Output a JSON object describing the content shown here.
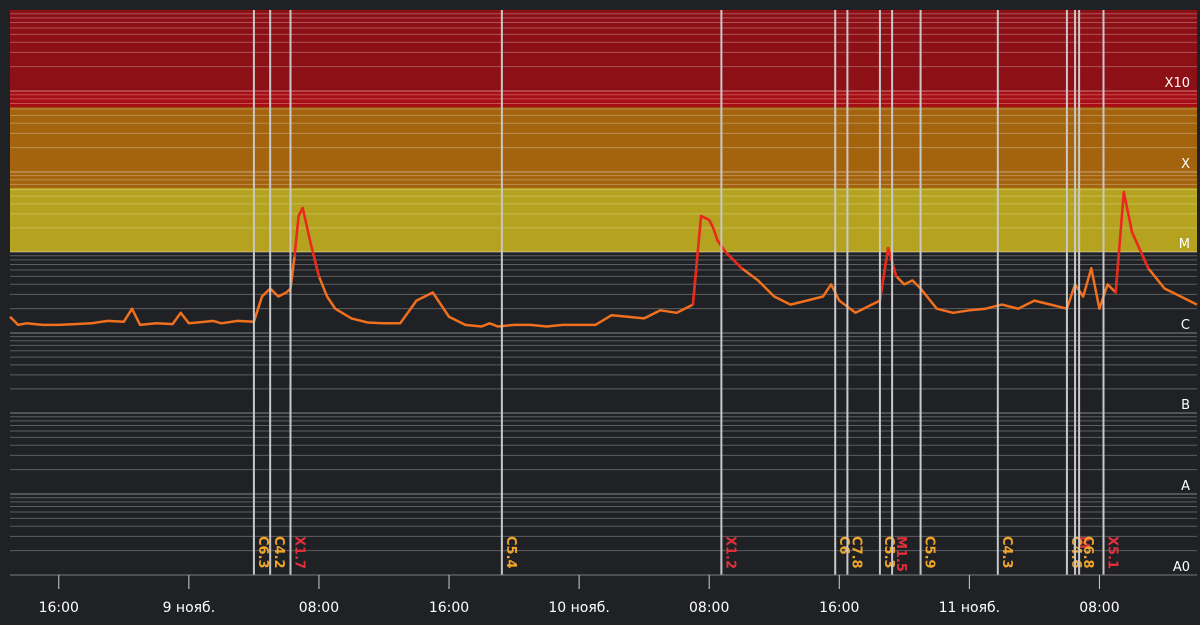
{
  "chart_data": {
    "type": "line",
    "title": "",
    "xlabel": "",
    "ylabel": "",
    "y_scale": "log",
    "x_range": [
      "08.11 13:00",
      "11.11 14:00"
    ],
    "x_ticks": [
      {
        "t": "08.11 16:00",
        "label": "16:00"
      },
      {
        "t": "09.11 00:00",
        "label": "9 нояб."
      },
      {
        "t": "09.11 08:00",
        "label": "08:00"
      },
      {
        "t": "09.11 16:00",
        "label": "16:00"
      },
      {
        "t": "10.11 00:00",
        "label": "10 нояб."
      },
      {
        "t": "10.11 08:00",
        "label": "08:00"
      },
      {
        "t": "10.11 16:00",
        "label": "16:00"
      },
      {
        "t": "11.11 00:00",
        "label": "11 нояб."
      },
      {
        "t": "11.11 08:00",
        "label": "08:00"
      }
    ],
    "y_class_labels": [
      {
        "label": "X10",
        "level": 1.0
      },
      {
        "label": "X",
        "level": 2.0
      },
      {
        "label": "M",
        "level": 3.0
      },
      {
        "label": "C",
        "level": 4.0
      },
      {
        "label": "B",
        "level": 5.0
      },
      {
        "label": "A",
        "level": 6.0
      },
      {
        "label": "A0",
        "level": 7.0
      }
    ],
    "zones": [
      {
        "name": "X10+",
        "from": 0.0,
        "to": 1.0,
        "color": "#8c1016"
      },
      {
        "name": "X10",
        "from": 1.0,
        "to": 1.2,
        "color": "#a80f14"
      },
      {
        "name": "X",
        "from": 1.2,
        "to": 2.2,
        "color": "#a4630d"
      },
      {
        "name": "M",
        "from": 2.2,
        "to": 3.0,
        "color": "#b5a21e"
      }
    ],
    "series": [
      {
        "color": "#f0701e",
        "peak_color": "#e8281e",
        "x": [
          "08.11 13:00",
          "08.11 13:30",
          "08.11 14:00",
          "08.11 15:00",
          "08.11 16:00",
          "08.11 17:00",
          "08.11 18:00",
          "08.11 19:00",
          "08.11 20:00",
          "08.11 20:30",
          "08.11 21:00",
          "08.11 22:00",
          "08.11 23:00",
          "08.11 23:30",
          "09.11 00:00",
          "09.11 01:00",
          "09.11 01:30",
          "09.11 02:00",
          "09.11 03:00",
          "09.11 04:00",
          "09.11 04:30",
          "09.11 05:00",
          "09.11 05:30",
          "09.11 06:00",
          "09.11 06:15",
          "09.11 06:30",
          "09.11 06:45",
          "09.11 07:00",
          "09.11 07:30",
          "09.11 08:00",
          "09.11 08:30",
          "09.11 09:00",
          "09.11 10:00",
          "09.11 11:00",
          "09.11 12:00",
          "09.11 13:00",
          "09.11 14:00",
          "09.11 15:00",
          "09.11 16:00",
          "09.11 17:00",
          "09.11 18:00",
          "09.11 18:30",
          "09.11 19:00",
          "09.11 20:00",
          "09.11 21:00",
          "09.11 22:00",
          "09.11 23:00",
          "10.11 00:00",
          "10.11 01:00",
          "10.11 02:00",
          "10.11 03:00",
          "10.11 04:00",
          "10.11 05:00",
          "10.11 06:00",
          "10.11 07:00",
          "10.11 07:30",
          "10.11 08:00",
          "10.11 08:15",
          "10.11 08:30",
          "10.11 09:00",
          "10.11 10:00",
          "10.11 11:00",
          "10.11 12:00",
          "10.11 13:00",
          "10.11 14:00",
          "10.11 15:00",
          "10.11 15:30",
          "10.11 16:00",
          "10.11 17:00",
          "10.11 18:00",
          "10.11 18:30",
          "10.11 19:00",
          "10.11 19:30",
          "10.11 20:00",
          "10.11 20:30",
          "10.11 21:00",
          "10.11 22:00",
          "10.11 23:00",
          "11.11 00:00",
          "11.11 01:00",
          "11.11 02:00",
          "11.11 03:00",
          "11.11 04:00",
          "11.11 05:00",
          "11.11 06:00",
          "11.11 06:30",
          "11.11 07:00",
          "11.11 07:30",
          "11.11 08:00",
          "11.11 08:30",
          "11.11 09:00",
          "11.11 09:30",
          "11.11 10:00",
          "11.11 11:00",
          "11.11 12:00",
          "11.11 13:00",
          "11.11 14:00"
        ],
        "y": [
          3.8,
          3.9,
          3.88,
          3.9,
          3.9,
          3.89,
          3.88,
          3.85,
          3.86,
          3.7,
          3.9,
          3.88,
          3.89,
          3.75,
          3.88,
          3.86,
          3.85,
          3.88,
          3.85,
          3.86,
          3.55,
          3.45,
          3.55,
          3.5,
          3.45,
          3.05,
          2.55,
          2.45,
          2.9,
          3.3,
          3.55,
          3.7,
          3.82,
          3.87,
          3.88,
          3.88,
          3.6,
          3.5,
          3.8,
          3.9,
          3.92,
          3.88,
          3.92,
          3.9,
          3.9,
          3.92,
          3.9,
          3.9,
          3.9,
          3.78,
          3.8,
          3.82,
          3.72,
          3.75,
          3.65,
          2.55,
          2.6,
          2.7,
          2.85,
          3.0,
          3.2,
          3.35,
          3.55,
          3.65,
          3.6,
          3.55,
          3.4,
          3.6,
          3.75,
          3.65,
          3.6,
          2.95,
          3.3,
          3.4,
          3.35,
          3.45,
          3.7,
          3.75,
          3.72,
          3.7,
          3.65,
          3.7,
          3.6,
          3.65,
          3.7,
          3.4,
          3.55,
          3.2,
          3.7,
          3.4,
          3.5,
          2.25,
          2.75,
          3.2,
          3.45,
          3.55,
          3.65
        ]
      }
    ],
    "flares": [
      {
        "label": "C6.3",
        "t": "09.11 04:00",
        "color": "#f0a52a"
      },
      {
        "label": "C4.2",
        "t": "09.11 05:00",
        "color": "#f0a52a"
      },
      {
        "label": "X1.7",
        "t": "09.11 06:15",
        "color": "#e0303a"
      },
      {
        "label": "C5.4",
        "t": "09.11 19:15",
        "color": "#f0a52a"
      },
      {
        "label": "X1.2",
        "t": "10.11 08:45",
        "color": "#e0303a"
      },
      {
        "label": "C6",
        "t": "10.11 15:45",
        "color": "#f0a52a"
      },
      {
        "label": "C7.8",
        "t": "10.11 16:30",
        "color": "#f0a52a"
      },
      {
        "label": "C5.3",
        "t": "10.11 18:30",
        "color": "#f0a52a"
      },
      {
        "label": "M1.5",
        "t": "10.11 19:15",
        "color": "#e0303a"
      },
      {
        "label": "C5.9",
        "t": "10.11 21:00",
        "color": "#f0a52a"
      },
      {
        "label": "C4.3",
        "t": "11.11 01:45",
        "color": "#f0a52a"
      },
      {
        "label": "C4.6",
        "t": "11.11 06:00",
        "color": "#f0a52a"
      },
      {
        "label": "M",
        "t": "11.11 06:30",
        "color": "#e0303a"
      },
      {
        "label": "C6.8",
        "t": "11.11 06:45",
        "color": "#f0a52a"
      },
      {
        "label": "X5.1",
        "t": "11.11 08:15",
        "color": "#e0303a"
      }
    ],
    "gridlines": true,
    "background_color": "#1f2125"
  }
}
